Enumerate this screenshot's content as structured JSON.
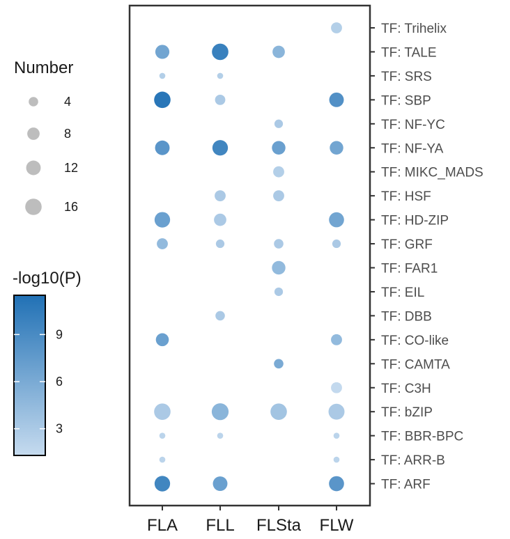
{
  "chart_data": {
    "type": "scatter",
    "title": "",
    "xlabel": "",
    "ylabel": "",
    "x_categories": [
      "FLA",
      "FLL",
      "FLSta",
      "FLW"
    ],
    "y_categories": [
      "TF: ARF",
      "TF: ARR-B",
      "TF: BBR-BPC",
      "TF: bZIP",
      "TF: C3H",
      "TF: CAMTA",
      "TF: CO-like",
      "TF: DBB",
      "TF: EIL",
      "TF: FAR1",
      "TF: GRF",
      "TF: HD-ZIP",
      "TF: HSF",
      "TF: MIKC_MADS",
      "TF: NF-YA",
      "TF: NF-YC",
      "TF: SBP",
      "TF: SRS",
      "TF: TALE",
      "TF: Trihelix"
    ],
    "points": [
      {
        "x": "FLA",
        "y": "TF: ARF",
        "number": 14,
        "neglog10p": 9.5
      },
      {
        "x": "FLL",
        "y": "TF: ARF",
        "number": 12,
        "neglog10p": 7
      },
      {
        "x": "FLW",
        "y": "TF: ARF",
        "number": 13,
        "neglog10p": 8
      },
      {
        "x": "FLA",
        "y": "TF: ARR-B",
        "number": 1,
        "neglog10p": 2
      },
      {
        "x": "FLW",
        "y": "TF: ARR-B",
        "number": 1,
        "neglog10p": 2
      },
      {
        "x": "FLA",
        "y": "TF: BBR-BPC",
        "number": 1,
        "neglog10p": 2
      },
      {
        "x": "FLL",
        "y": "TF: BBR-BPC",
        "number": 1,
        "neglog10p": 2
      },
      {
        "x": "FLW",
        "y": "TF: BBR-BPC",
        "number": 1,
        "neglog10p": 2
      },
      {
        "x": "FLA",
        "y": "TF: bZIP",
        "number": 16,
        "neglog10p": 3
      },
      {
        "x": "FLL",
        "y": "TF: bZIP",
        "number": 17,
        "neglog10p": 5
      },
      {
        "x": "FLSta",
        "y": "TF: bZIP",
        "number": 16,
        "neglog10p": 3.5
      },
      {
        "x": "FLW",
        "y": "TF: bZIP",
        "number": 15,
        "neglog10p": 3
      },
      {
        "x": "FLW",
        "y": "TF: C3H",
        "number": 6,
        "neglog10p": 1.5
      },
      {
        "x": "FLSta",
        "y": "TF: CAMTA",
        "number": 4,
        "neglog10p": 6
      },
      {
        "x": "FLA",
        "y": "TF: CO-like",
        "number": 9,
        "neglog10p": 7
      },
      {
        "x": "FLW",
        "y": "TF: CO-like",
        "number": 6,
        "neglog10p": 4.5
      },
      {
        "x": "FLL",
        "y": "TF: DBB",
        "number": 4,
        "neglog10p": 3
      },
      {
        "x": "FLSta",
        "y": "TF: EIL",
        "number": 3,
        "neglog10p": 3
      },
      {
        "x": "FLSta",
        "y": "TF: FAR1",
        "number": 10,
        "neglog10p": 4.5
      },
      {
        "x": "FLA",
        "y": "TF: GRF",
        "number": 6,
        "neglog10p": 4.5
      },
      {
        "x": "FLL",
        "y": "TF: GRF",
        "number": 3,
        "neglog10p": 3
      },
      {
        "x": "FLSta",
        "y": "TF: GRF",
        "number": 4,
        "neglog10p": 3
      },
      {
        "x": "FLW",
        "y": "TF: GRF",
        "number": 3,
        "neglog10p": 3
      },
      {
        "x": "FLA",
        "y": "TF: HD-ZIP",
        "number": 14,
        "neglog10p": 7
      },
      {
        "x": "FLL",
        "y": "TF: HD-ZIP",
        "number": 8,
        "neglog10p": 3
      },
      {
        "x": "FLW",
        "y": "TF: HD-ZIP",
        "number": 13,
        "neglog10p": 6.5
      },
      {
        "x": "FLL",
        "y": "TF: HSF",
        "number": 6,
        "neglog10p": 3
      },
      {
        "x": "FLSta",
        "y": "TF: HSF",
        "number": 6,
        "neglog10p": 3
      },
      {
        "x": "FLSta",
        "y": "TF: MIKC_MADS",
        "number": 6,
        "neglog10p": 2.5
      },
      {
        "x": "FLA",
        "y": "TF: NF-YA",
        "number": 12,
        "neglog10p": 8
      },
      {
        "x": "FLL",
        "y": "TF: NF-YA",
        "number": 14,
        "neglog10p": 9.5
      },
      {
        "x": "FLSta",
        "y": "TF: NF-YA",
        "number": 10,
        "neglog10p": 7
      },
      {
        "x": "FLW",
        "y": "TF: NF-YA",
        "number": 10,
        "neglog10p": 6.5
      },
      {
        "x": "FLSta",
        "y": "TF: NF-YC",
        "number": 3,
        "neglog10p": 3
      },
      {
        "x": "FLA",
        "y": "TF: SBP",
        "number": 16,
        "neglog10p": 11
      },
      {
        "x": "FLL",
        "y": "TF: SBP",
        "number": 5,
        "neglog10p": 3
      },
      {
        "x": "FLW",
        "y": "TF: SBP",
        "number": 12,
        "neglog10p": 8.5
      },
      {
        "x": "FLA",
        "y": "TF: SRS",
        "number": 1,
        "neglog10p": 2.5
      },
      {
        "x": "FLL",
        "y": "TF: SRS",
        "number": 1,
        "neglog10p": 2.5
      },
      {
        "x": "FLA",
        "y": "TF: TALE",
        "number": 11,
        "neglog10p": 6.5
      },
      {
        "x": "FLL",
        "y": "TF: TALE",
        "number": 16,
        "neglog10p": 10
      },
      {
        "x": "FLSta",
        "y": "TF: TALE",
        "number": 8,
        "neglog10p": 5
      },
      {
        "x": "FLW",
        "y": "TF: Trihelix",
        "number": 6,
        "neglog10p": 2.5
      }
    ],
    "size_legend": {
      "title": "Number",
      "values": [
        4,
        8,
        12,
        16
      ]
    },
    "color_legend": {
      "title": "-log10(P)",
      "ticks": [
        3,
        6,
        9
      ],
      "range": [
        1.3,
        11.5
      ],
      "color_low": "#c6dbef",
      "color_high": "#2171b5"
    },
    "legend_position": "left",
    "grid": false
  }
}
